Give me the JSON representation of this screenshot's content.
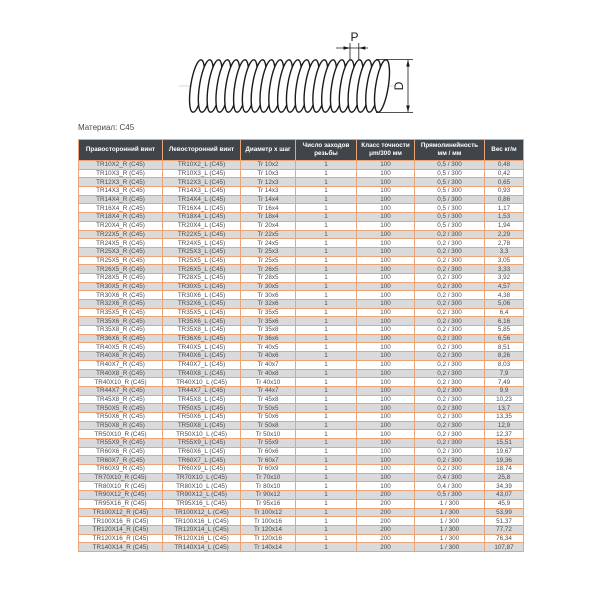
{
  "drawing": {
    "pitch_label": "P",
    "diameter_label": "D"
  },
  "material_label": "Материал: C45",
  "table": {
    "headers": [
      "Правосторонний винт",
      "Левосторонний винт",
      "Диаметр х шаг",
      "Число заходов резьбы",
      "Класс точности μm/300 мм",
      "Прямолинейность мм / мм",
      "Вес кг/м"
    ],
    "rows": [
      [
        "TR10X2_R (C45)",
        "TR10X2_L (C45)",
        "Tr 10x2",
        "1",
        "100",
        "0,5 / 300",
        "0,48"
      ],
      [
        "TR10X3_R (C45)",
        "TR10X3_L (C45)",
        "Tr 10x3",
        "1",
        "100",
        "0,5 / 300",
        "0,42"
      ],
      [
        "TR12X3_R (C45)",
        "TR12X3_L (C45)",
        "Tr 12x3",
        "1",
        "100",
        "0,5 / 300",
        "0,65"
      ],
      [
        "TR14X3_R (C45)",
        "TR14X3_L (C45)",
        "Tr 14x3",
        "1",
        "100",
        "0,5 / 300",
        "0,93"
      ],
      [
        "TR14X4_R (C45)",
        "TR14X4_L (C45)",
        "Tr 14x4",
        "1",
        "100",
        "0,5 / 300",
        "0,86"
      ],
      [
        "TR16X4_R (C45)",
        "TR16X4_L (C45)",
        "Tr 16x4",
        "1",
        "100",
        "0,5 / 300",
        "1,17"
      ],
      [
        "TR18X4_R (C45)",
        "TR18X4_L (C45)",
        "Tr 18x4",
        "1",
        "100",
        "0,5 / 300",
        "1,53"
      ],
      [
        "TR20X4_R (C45)",
        "TR20X4_L (C45)",
        "Tr 20x4",
        "1",
        "100",
        "0,5 / 300",
        "1,94"
      ],
      [
        "TR22X5_R (C45)",
        "TR22X5_L (C45)",
        "Tr 22x5",
        "1",
        "100",
        "0,2 / 300",
        "2,29"
      ],
      [
        "TR24X5_R (C45)",
        "TR24X5_L (C45)",
        "Tr 24x5",
        "1",
        "100",
        "0,2 / 300",
        "2,78"
      ],
      [
        "TR25X3_R (C45)",
        "TR25X3_L (C45)",
        "Tr 25x3",
        "1",
        "100",
        "0,2 / 300",
        "3,3"
      ],
      [
        "TR25X5_R (C45)",
        "TR25X5_L (C45)",
        "Tr 25x5",
        "1",
        "100",
        "0,2 / 300",
        "3,05"
      ],
      [
        "TR26X5_R (C45)",
        "TR26X5_L (C45)",
        "Tr 26x5",
        "1",
        "100",
        "0,2 / 300",
        "3,33"
      ],
      [
        "TR28X5_R (C45)",
        "TR28X5_L (C45)",
        "Tr 28x5",
        "1",
        "100",
        "0,2 / 300",
        "3,92"
      ],
      [
        "TR30X5_R (C45)",
        "TR30X5_L (C45)",
        "Tr 30x5",
        "1",
        "100",
        "0,2 / 300",
        "4,57"
      ],
      [
        "TR30X6_R (C45)",
        "TR30X6_L (C45)",
        "Tr 30x6",
        "1",
        "100",
        "0,2 / 300",
        "4,38"
      ],
      [
        "TR32X6_R (C45)",
        "TR32X6_L (C45)",
        "Tr 32x6",
        "1",
        "100",
        "0,2 / 300",
        "5,06"
      ],
      [
        "TR35X5_R (C45)",
        "TR35X5_L (C45)",
        "Tr 35x5",
        "1",
        "100",
        "0,2 / 300",
        "6,4"
      ],
      [
        "TR35X6_R (C45)",
        "TR35X6_L (C45)",
        "Tr 35x6",
        "1",
        "100",
        "0,2 / 300",
        "6,16"
      ],
      [
        "TR35X8_R (C45)",
        "TR35X8_L (C45)",
        "Tr 35x8",
        "1",
        "100",
        "0,2 / 300",
        "5,85"
      ],
      [
        "TR36X6_R (C45)",
        "TR36X6_L (C45)",
        "Tr 36x6",
        "1",
        "100",
        "0,2 / 300",
        "6,56"
      ],
      [
        "TR40X5_R (C45)",
        "TR40X5_L (C45)",
        "Tr 40x5",
        "1",
        "100",
        "0,2 / 300",
        "8,51"
      ],
      [
        "TR40X6_R (C45)",
        "TR40X6_L (C45)",
        "Tr 40x6",
        "1",
        "100",
        "0,2 / 300",
        "8,26"
      ],
      [
        "TR40X7_R (C45)",
        "TR40X7_L (C45)",
        "Tr 40x7",
        "1",
        "100",
        "0,2 / 300",
        "8,03"
      ],
      [
        "TR40X8_R (C45)",
        "TR40X8_L (C45)",
        "Tr 40x8",
        "1",
        "100",
        "0,2 / 300",
        "7,9"
      ],
      [
        "TR40X10_R (C45)",
        "TR40X10_L (C45)",
        "Tr 40x10",
        "1",
        "100",
        "0,2 / 300",
        "7,49"
      ],
      [
        "TR44X7_R (C45)",
        "TR44X7_L (C45)",
        "Tr 44x7",
        "1",
        "100",
        "0,2 / 300",
        "9,9"
      ],
      [
        "TR45X8_R (C45)",
        "TR45X8_L (C45)",
        "Tr 45x8",
        "1",
        "100",
        "0,2 / 300",
        "10,23"
      ],
      [
        "TR50X5_R (C45)",
        "TR50X5_L (C45)",
        "Tr 50x5",
        "1",
        "100",
        "0,2 / 300",
        "13,7"
      ],
      [
        "TR50X6_R (C45)",
        "TR50X6_L (C45)",
        "Tr 50x6",
        "1",
        "100",
        "0,2 / 300",
        "13,35"
      ],
      [
        "TR50X8_R (C45)",
        "TR50X8_L (C45)",
        "Tr 50x8",
        "1",
        "100",
        "0,2 / 300",
        "12,9"
      ],
      [
        "TR50X10_R (C45)",
        "TR50X10_L (C45)",
        "Tr 50x10",
        "1",
        "100",
        "0,2 / 300",
        "12,37"
      ],
      [
        "TR55X9_R (C45)",
        "TR55X9_L (C45)",
        "Tr 55x9",
        "1",
        "100",
        "0,2 / 300",
        "15,51"
      ],
      [
        "TR60X6_R (C45)",
        "TR60X6_L (C45)",
        "Tr 60x6",
        "1",
        "100",
        "0,2 / 300",
        "19,67"
      ],
      [
        "TR60X7_R (C45)",
        "TR60X7_L (C45)",
        "Tr 60x7",
        "1",
        "100",
        "0,2 / 300",
        "19,36"
      ],
      [
        "TR60X9_R (C45)",
        "TR60X9_L (C45)",
        "Tr 60x9",
        "1",
        "100",
        "0,2 / 300",
        "18,74"
      ],
      [
        "TR70X10_R (C45)",
        "TR70X10_L (C45)",
        "Tr 70x10",
        "1",
        "100",
        "0,4 / 300",
        "25,8"
      ],
      [
        "TR80X10_R (C45)",
        "TR80X10_L (C45)",
        "Tr 80x10",
        "1",
        "100",
        "0,4 / 300",
        "34,39"
      ],
      [
        "TR90X12_R (C45)",
        "TR90X12_L (C45)",
        "Tr 90x12",
        "1",
        "200",
        "0,5 / 300",
        "43,07"
      ],
      [
        "TR95X16_R (C45)",
        "TR95X16_L (C45)",
        "Tr 95x16",
        "1",
        "200",
        "1 / 300",
        "45,9"
      ],
      [
        "TR100X12_R (C45)",
        "TR100X12_L (C45)",
        "Tr 100x12",
        "1",
        "200",
        "1 / 300",
        "53,99"
      ],
      [
        "TR100X16_R (C45)",
        "TR100X16_L (C45)",
        "Tr 100x16",
        "1",
        "200",
        "1 / 300",
        "51,37"
      ],
      [
        "TR120X14_R (C45)",
        "TR120X14_L (C45)",
        "Tr 120x14",
        "1",
        "200",
        "1 / 300",
        "77,72"
      ],
      [
        "TR120X16_R (C45)",
        "TR120X16_L (C45)",
        "Tr 120x16",
        "1",
        "200",
        "1 / 300",
        "76,34"
      ],
      [
        "TR140X14_R (C45)",
        "TR140X14_L (C45)",
        "Tr 140x14",
        "1",
        "200",
        "1 / 300",
        "107,87"
      ]
    ]
  },
  "colors": {
    "header_bg": "#40454a",
    "header_text": "#ffffff",
    "table_border": "#e9a478",
    "row_alt": "#dadada",
    "cell_text": "#4a4a4a"
  }
}
